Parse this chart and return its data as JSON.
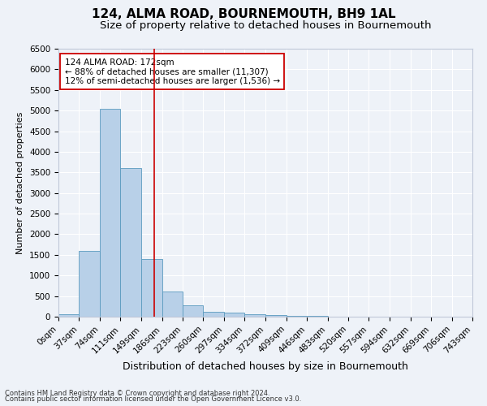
{
  "title": "124, ALMA ROAD, BOURNEMOUTH, BH9 1AL",
  "subtitle": "Size of property relative to detached houses in Bournemouth",
  "xlabel": "Distribution of detached houses by size in Bournemouth",
  "ylabel": "Number of detached properties",
  "footnote1": "Contains HM Land Registry data © Crown copyright and database right 2024.",
  "footnote2": "Contains public sector information licensed under the Open Government Licence v3.0.",
  "annotation_line1": "124 ALMA ROAD: 172sqm",
  "annotation_line2": "← 88% of detached houses are smaller (11,307)",
  "annotation_line3": "12% of semi-detached houses are larger (1,536) →",
  "bar_edges": [
    0,
    37,
    74,
    111,
    149,
    186,
    223,
    260,
    297,
    334,
    372,
    409,
    446,
    483,
    520,
    557,
    594,
    632,
    669,
    706,
    743
  ],
  "bar_heights": [
    50,
    1600,
    5050,
    3600,
    1400,
    620,
    270,
    120,
    90,
    55,
    30,
    15,
    10,
    5,
    0,
    0,
    0,
    0,
    0,
    0
  ],
  "bar_color": "#b8d0e8",
  "bar_edge_color": "#5a9abf",
  "vline_x": 172,
  "vline_color": "#cc0000",
  "ylim": [
    0,
    6500
  ],
  "yticks": [
    0,
    500,
    1000,
    1500,
    2000,
    2500,
    3000,
    3500,
    4000,
    4500,
    5000,
    5500,
    6000,
    6500
  ],
  "background_color": "#eef2f8",
  "axes_background": "#eef2f8",
  "grid_color": "#ffffff",
  "title_fontsize": 11,
  "subtitle_fontsize": 9.5,
  "xlabel_fontsize": 9,
  "ylabel_fontsize": 8,
  "tick_fontsize": 7.5,
  "annotation_fontsize": 7.5,
  "footnote_fontsize": 6
}
